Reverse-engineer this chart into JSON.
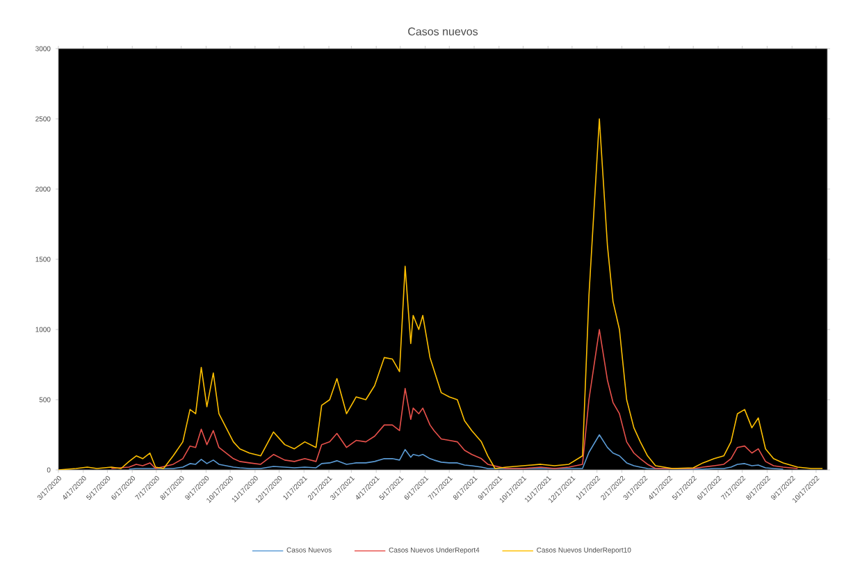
{
  "chart_data": {
    "type": "line",
    "title": "Casos nuevos",
    "legend": "bottom",
    "grid": false,
    "marker": "none",
    "line_style": "solid",
    "x": [
      "2020-03-17",
      "2020-04-08",
      "2020-04-22",
      "2020-05-04",
      "2020-05-22",
      "2020-06-03",
      "2020-06-13",
      "2020-06-22",
      "2020-06-30",
      "2020-07-09",
      "2020-07-16",
      "2020-07-26",
      "2020-08-07",
      "2020-08-19",
      "2020-08-28",
      "2020-09-04",
      "2020-09-11",
      "2020-09-18",
      "2020-09-26",
      "2020-10-03",
      "2020-10-12",
      "2020-10-21",
      "2020-10-29",
      "2020-11-10",
      "2020-11-24",
      "2020-12-10",
      "2020-12-24",
      "2021-01-05",
      "2021-01-18",
      "2021-02-01",
      "2021-02-08",
      "2021-02-18",
      "2021-02-27",
      "2021-03-11",
      "2021-03-23",
      "2021-04-04",
      "2021-04-15",
      "2021-04-27",
      "2021-05-07",
      "2021-05-16",
      "2021-05-23",
      "2021-05-30",
      "2021-06-02",
      "2021-06-09",
      "2021-06-14",
      "2021-06-23",
      "2021-06-28",
      "2021-07-07",
      "2021-07-17",
      "2021-07-27",
      "2021-08-05",
      "2021-08-14",
      "2021-08-26",
      "2021-09-03",
      "2021-09-12",
      "2021-09-26",
      "2021-10-17",
      "2021-11-08",
      "2021-11-25",
      "2021-12-13",
      "2021-12-30",
      "2022-01-07",
      "2022-01-20",
      "2022-01-30",
      "2022-02-06",
      "2022-02-14",
      "2022-02-23",
      "2022-03-04",
      "2022-03-12",
      "2022-03-21",
      "2022-03-31",
      "2022-04-21",
      "2022-05-17",
      "2022-05-29",
      "2022-06-12",
      "2022-06-24",
      "2022-07-03",
      "2022-07-11",
      "2022-07-20",
      "2022-07-29",
      "2022-08-06",
      "2022-08-15",
      "2022-08-25",
      "2022-09-06",
      "2022-09-24",
      "2022-10-11",
      "2022-10-25"
    ],
    "xlim": [
      "2020-03-17",
      "2022-10-31"
    ],
    "xticks": [
      {
        "value": "2020-03-17",
        "label": "3/17/2020"
      },
      {
        "value": "2020-04-17",
        "label": "4/17/2020"
      },
      {
        "value": "2020-05-17",
        "label": "5/17/2020"
      },
      {
        "value": "2020-06-17",
        "label": "6/17/2020"
      },
      {
        "value": "2020-07-17",
        "label": "7/17/2020"
      },
      {
        "value": "2020-08-17",
        "label": "8/17/2020"
      },
      {
        "value": "2020-09-17",
        "label": "9/17/2020"
      },
      {
        "value": "2020-10-17",
        "label": "10/17/2020"
      },
      {
        "value": "2020-11-17",
        "label": "11/17/2020"
      },
      {
        "value": "2020-12-17",
        "label": "12/17/2020"
      },
      {
        "value": "2021-01-17",
        "label": "1/17/2021"
      },
      {
        "value": "2021-02-17",
        "label": "2/17/2021"
      },
      {
        "value": "2021-03-17",
        "label": "3/17/2021"
      },
      {
        "value": "2021-04-17",
        "label": "4/17/2021"
      },
      {
        "value": "2021-05-17",
        "label": "5/17/2021"
      },
      {
        "value": "2021-06-17",
        "label": "6/17/2021"
      },
      {
        "value": "2021-07-17",
        "label": "7/17/2021"
      },
      {
        "value": "2021-08-17",
        "label": "8/17/2021"
      },
      {
        "value": "2021-09-17",
        "label": "9/17/2021"
      },
      {
        "value": "2021-10-17",
        "label": "10/17/2021"
      },
      {
        "value": "2021-11-17",
        "label": "11/17/2021"
      },
      {
        "value": "2021-12-17",
        "label": "12/17/2021"
      },
      {
        "value": "2022-01-17",
        "label": "1/17/2022"
      },
      {
        "value": "2022-02-17",
        "label": "2/17/2022"
      },
      {
        "value": "2022-03-17",
        "label": "3/17/2022"
      },
      {
        "value": "2022-04-17",
        "label": "4/17/2022"
      },
      {
        "value": "2022-05-17",
        "label": "5/17/2022"
      },
      {
        "value": "2022-06-17",
        "label": "6/17/2022"
      },
      {
        "value": "2022-07-17",
        "label": "7/17/2022"
      },
      {
        "value": "2022-08-17",
        "label": "8/17/2022"
      },
      {
        "value": "2022-09-17",
        "label": "9/17/2022"
      },
      {
        "value": "2022-10-17",
        "label": "10/17/2022"
      }
    ],
    "ylim": [
      0,
      3000
    ],
    "yticks": [
      0,
      500,
      1000,
      1500,
      2000,
      2500,
      3000
    ],
    "series": [
      {
        "name": "Casos Nuevos",
        "color": "#5b9bd5",
        "values": [
          null,
          null,
          null,
          null,
          null,
          null,
          5,
          10,
          10,
          10,
          null,
          null,
          10,
          20,
          45,
          40,
          75,
          45,
          70,
          40,
          30,
          20,
          15,
          10,
          10,
          25,
          20,
          15,
          20,
          15,
          45,
          50,
          65,
          40,
          50,
          50,
          60,
          80,
          80,
          70,
          145,
          90,
          110,
          100,
          110,
          80,
          70,
          55,
          50,
          50,
          35,
          30,
          20,
          10,
          null,
          null,
          null,
          null,
          null,
          null,
          10,
          125,
          250,
          160,
          120,
          100,
          50,
          30,
          20,
          10,
          null,
          null,
          null,
          5,
          10,
          10,
          20,
          40,
          45,
          30,
          35,
          15,
          10,
          5,
          null,
          null,
          null
        ]
      },
      {
        "name": "Casos Nuevos UnderReport4",
        "color": "#e8514b",
        "values": [
          null,
          null,
          null,
          null,
          10,
          null,
          20,
          40,
          30,
          50,
          10,
          null,
          40,
          80,
          170,
          160,
          290,
          180,
          280,
          160,
          120,
          80,
          60,
          50,
          40,
          110,
          70,
          60,
          80,
          60,
          180,
          200,
          260,
          160,
          210,
          200,
          240,
          320,
          320,
          280,
          580,
          360,
          440,
          400,
          440,
          320,
          280,
          220,
          210,
          200,
          140,
          110,
          80,
          40,
          null,
          10,
          10,
          20,
          10,
          20,
          40,
          500,
          1000,
          640,
          480,
          400,
          200,
          120,
          80,
          40,
          10,
          null,
          10,
          20,
          30,
          40,
          80,
          160,
          170,
          120,
          150,
          60,
          30,
          20,
          10,
          null,
          null
        ]
      },
      {
        "name": "Casos Nuevos UnderReport10",
        "color": "#ffc000",
        "values": [
          0,
          10,
          20,
          10,
          20,
          10,
          60,
          100,
          80,
          120,
          20,
          10,
          100,
          200,
          430,
          400,
          730,
          450,
          690,
          400,
          300,
          200,
          150,
          120,
          100,
          270,
          180,
          150,
          200,
          160,
          460,
          500,
          650,
          400,
          520,
          500,
          600,
          800,
          790,
          700,
          1450,
          900,
          1100,
          1000,
          1100,
          800,
          710,
          550,
          520,
          500,
          350,
          280,
          200,
          100,
          10,
          20,
          30,
          40,
          30,
          40,
          100,
          1240,
          2500,
          1600,
          1200,
          1000,
          500,
          300,
          200,
          100,
          30,
          10,
          15,
          50,
          80,
          100,
          200,
          400,
          430,
          300,
          370,
          150,
          80,
          50,
          20,
          10,
          10
        ]
      }
    ]
  }
}
